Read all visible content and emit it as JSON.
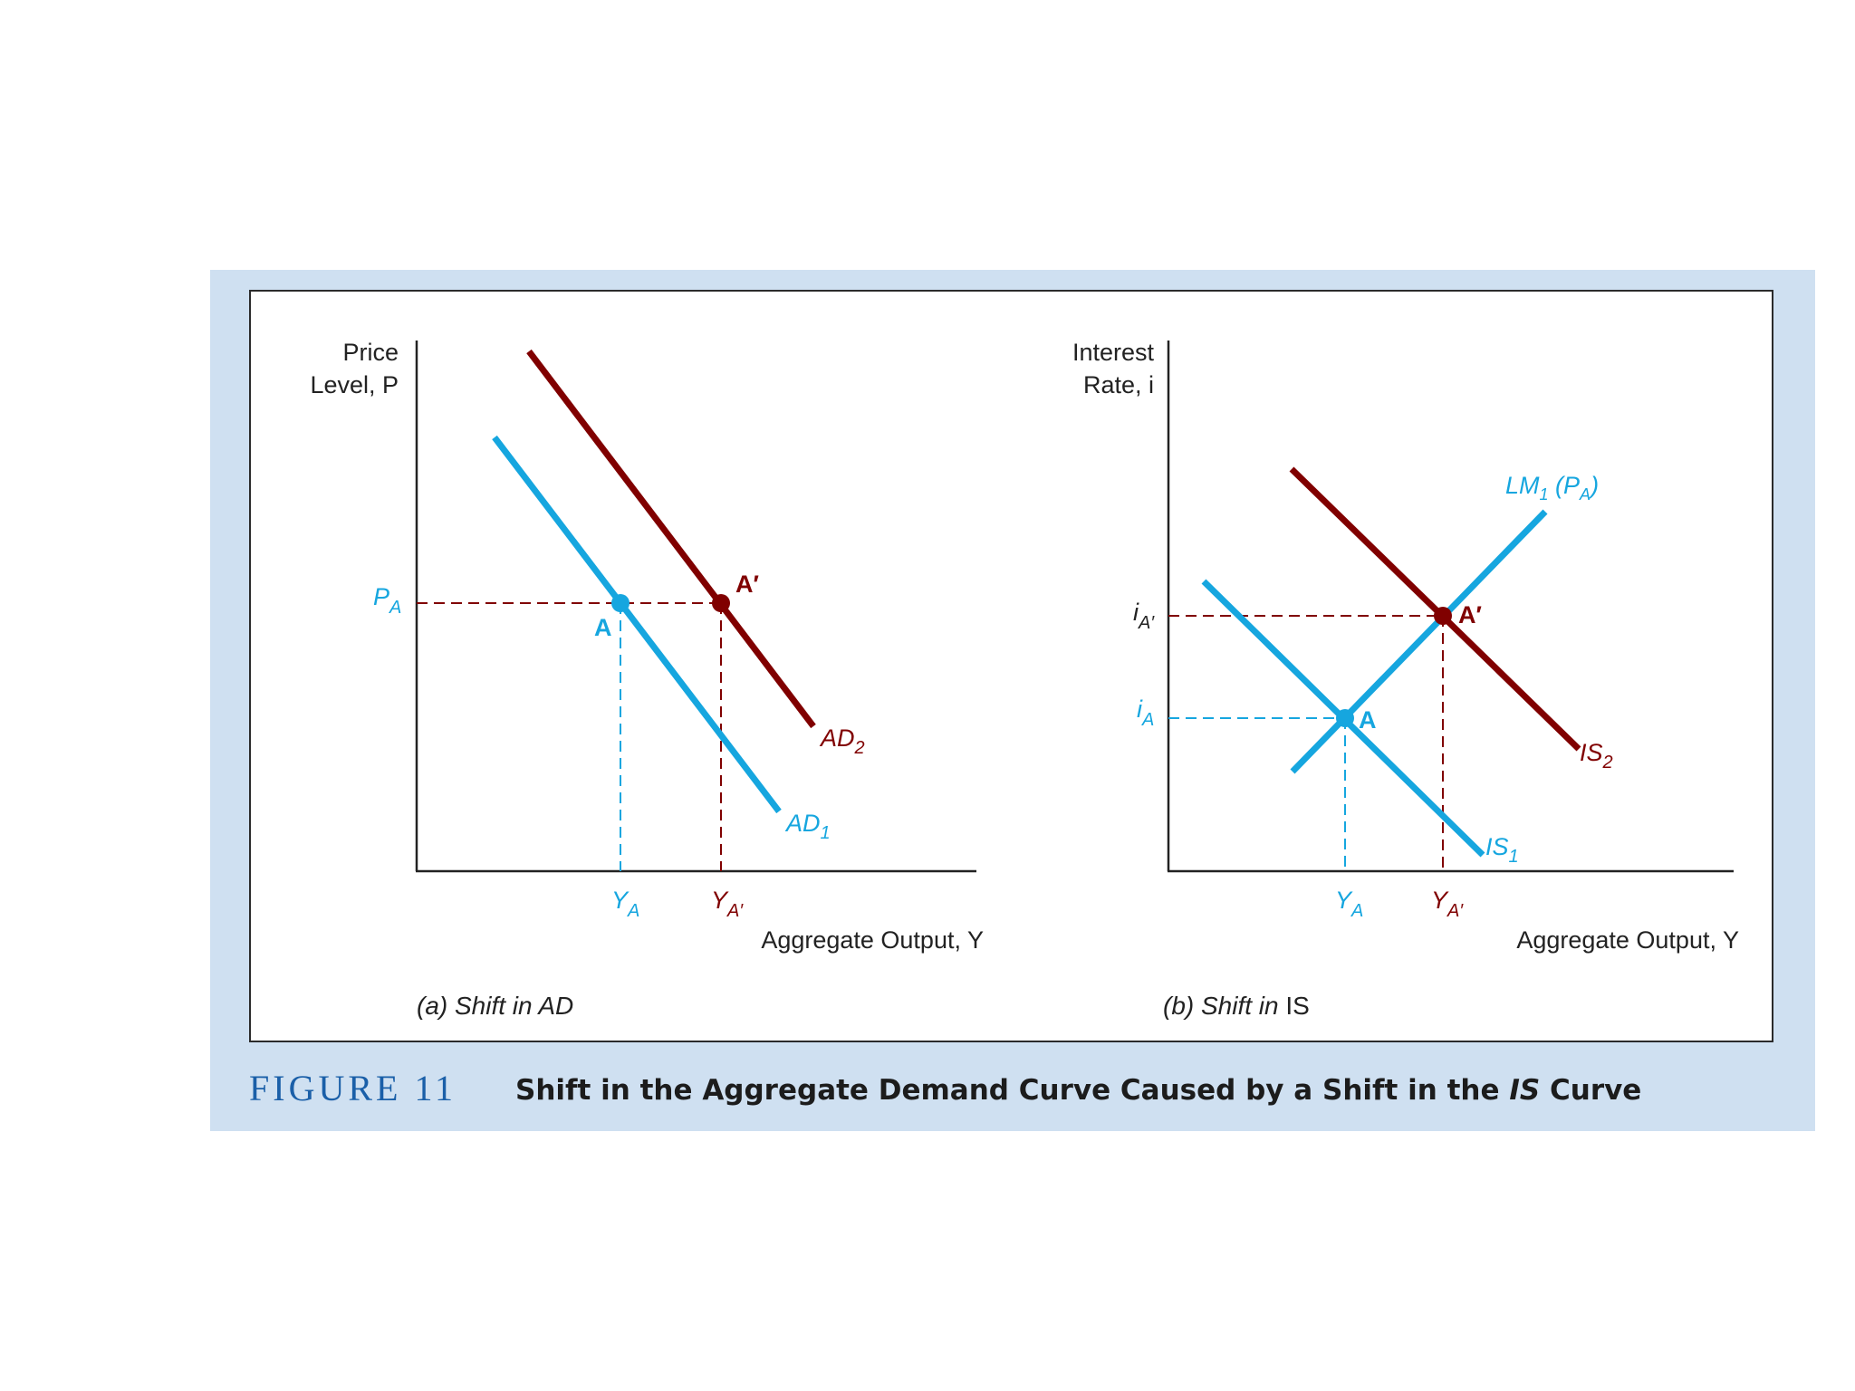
{
  "figure": {
    "number_label": "FIGURE 11",
    "title_pre": "Shift in the Aggregate Demand Curve Caused by a Shift in the ",
    "title_italic": "IS",
    "title_post": " Curve"
  },
  "colors": {
    "blue": "#16a6df",
    "red": "#800000",
    "axis": "#222222"
  },
  "panel_a": {
    "caption": "(a) Shift in AD",
    "y_axis_label_line1": "Price",
    "y_axis_label_line2": "Level, P",
    "x_axis_label": "Aggregate Output, Y",
    "p_label": "P",
    "p_sub": "A",
    "ya_label": "Y",
    "ya_sub": "A",
    "yap_label": "Y",
    "yap_sub": "A′",
    "point_a": "A",
    "point_ap": "A′",
    "curve1_label": "AD",
    "curve1_sub": "1",
    "curve2_label": "AD",
    "curve2_sub": "2"
  },
  "panel_b": {
    "caption_italic": "(b) Shift in ",
    "caption_plain": "IS",
    "y_axis_label_line1": "Interest",
    "y_axis_label_line2": "Rate, i",
    "x_axis_label": "Aggregate Output, Y",
    "iap_label": "i",
    "iap_sub": "A′",
    "ia_label": "i",
    "ia_sub": "A",
    "ya_label": "Y",
    "ya_sub": "A",
    "yap_label": "Y",
    "yap_sub": "A′",
    "point_a": "A",
    "point_ap": "A′",
    "lm_label": "LM",
    "lm_sub": "1",
    "lm_paren": " (P",
    "lm_paren_sub": "A",
    "lm_close": ")",
    "is1_label": "IS",
    "is1_sub": "1",
    "is2_label": "IS",
    "is2_sub": "2"
  }
}
